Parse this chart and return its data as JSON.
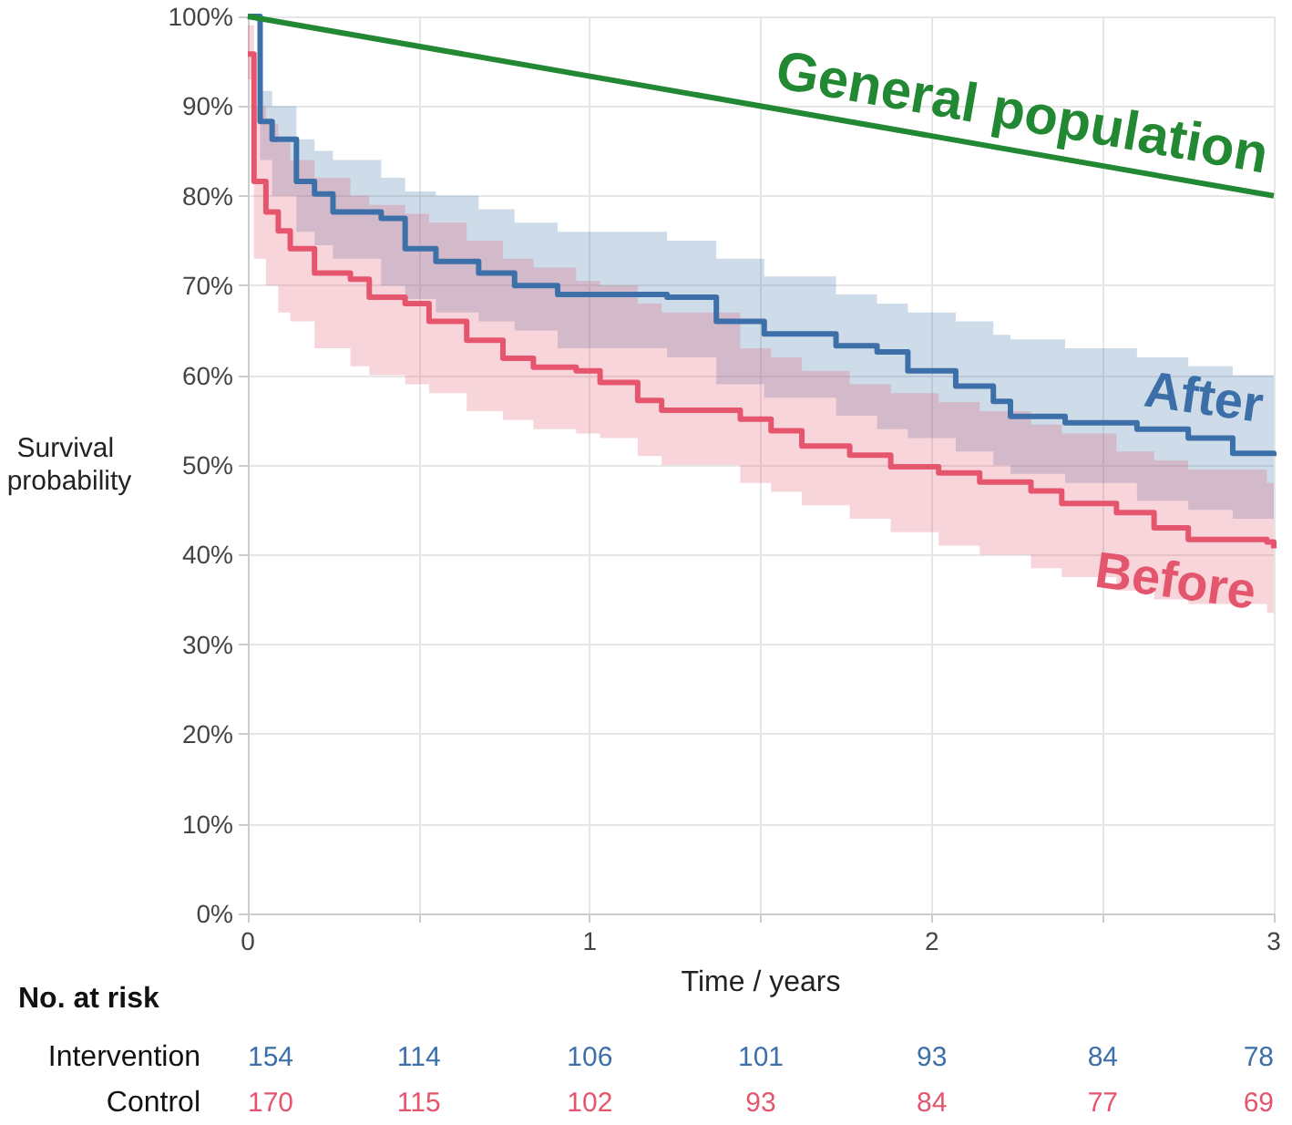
{
  "chart_data": {
    "type": "step",
    "xlabel": "Time / years",
    "ylabel": "Survival probability",
    "xlim": [
      0,
      3
    ],
    "xticks": [
      0,
      {
        "value": 0.5,
        "label": null
      },
      1,
      {
        "value": 1.5,
        "label": null
      },
      2,
      {
        "value": 2.5,
        "label": null
      },
      3
    ],
    "ylim": [
      0,
      100
    ],
    "yticks": [
      {
        "value": 0,
        "label": "0%"
      },
      {
        "value": 10,
        "label": "10%"
      },
      {
        "value": 20,
        "label": "20%"
      },
      {
        "value": 30,
        "label": "30%"
      },
      {
        "value": 40,
        "label": "40%"
      },
      {
        "value": 50,
        "label": "50%"
      },
      {
        "value": 60,
        "label": "60%"
      },
      {
        "value": 70,
        "label": "70%"
      },
      {
        "value": 80,
        "label": "80%"
      },
      {
        "value": 90,
        "label": "90%"
      },
      {
        "value": 100,
        "label": "100%"
      }
    ],
    "grid": true,
    "legend": false,
    "marker": "none",
    "line_style": "solid",
    "series": [
      {
        "name": "After",
        "color": "#3d6fa8",
        "x": [
          0,
          0.036,
          0.071,
          0.142,
          0.195,
          0.249,
          0.39,
          0.46,
          0.55,
          0.675,
          0.78,
          0.906,
          1.226,
          1.37,
          1.51,
          1.72,
          1.84,
          1.93,
          2.07,
          2.18,
          2.23,
          2.39,
          2.6,
          2.75,
          2.88,
          3
        ],
        "values": [
          100,
          88.3,
          86.3,
          81.6,
          80.2,
          78.2,
          77.5,
          74.1,
          72.7,
          71.4,
          70,
          69,
          68.7,
          66,
          64.6,
          63.3,
          62.6,
          60.5,
          58.8,
          57.1,
          55.4,
          54.7,
          54,
          53,
          51.3,
          51
        ],
        "upper": [
          100,
          91.7,
          90,
          86.3,
          85,
          84,
          82,
          80.5,
          80,
          78.5,
          77,
          76,
          75,
          73,
          71,
          69,
          68,
          67,
          66,
          64.5,
          64,
          63,
          62,
          61,
          60,
          58.5
        ],
        "lower": [
          100,
          84,
          80,
          76,
          74.5,
          73,
          70,
          68.5,
          67,
          66,
          65,
          63,
          62,
          59,
          57.5,
          55.5,
          54,
          53,
          51.5,
          50,
          49,
          48,
          46,
          45,
          44,
          43
        ]
      },
      {
        "name": "Before",
        "color": "#e5566e",
        "x": [
          0,
          0.018,
          0.053,
          0.089,
          0.124,
          0.195,
          0.3,
          0.355,
          0.46,
          0.53,
          0.64,
          0.746,
          0.835,
          0.96,
          1.03,
          1.14,
          1.21,
          1.44,
          1.53,
          1.62,
          1.76,
          1.88,
          2.02,
          2.14,
          2.29,
          2.38,
          2.54,
          2.65,
          2.75,
          2.98,
          3
        ],
        "values": [
          95.8,
          81.6,
          78.2,
          76.1,
          74.1,
          71.4,
          70.7,
          68.7,
          68,
          66,
          63.9,
          61.9,
          60.9,
          60.5,
          59.2,
          57.2,
          56.1,
          55.1,
          53.8,
          52.1,
          51.1,
          49.8,
          49.1,
          48.1,
          47.1,
          45.7,
          44.7,
          43,
          41.7,
          41.4,
          40.7
        ],
        "upper": [
          99,
          90,
          88,
          86,
          84,
          82,
          80,
          79,
          78,
          77,
          75,
          73,
          72,
          70.5,
          70,
          68,
          67,
          63,
          62,
          60.5,
          59,
          58,
          57,
          56,
          54.5,
          53.5,
          51.5,
          50.5,
          49.5,
          48,
          47.5
        ],
        "lower": [
          93,
          73,
          70,
          67,
          66,
          63,
          61,
          60,
          59,
          58,
          56,
          55,
          54,
          53.5,
          53,
          51,
          50,
          48,
          47,
          45.5,
          44,
          42.5,
          41,
          40,
          38.5,
          37.5,
          36,
          35,
          34.5,
          33.5,
          33
        ]
      },
      {
        "name": "General population",
        "type": "line",
        "color": "#228833",
        "x": [
          0,
          3
        ],
        "values": [
          100,
          80
        ]
      }
    ],
    "annotations": [
      "No. at risk",
      "Intervention",
      "154",
      "114",
      "106",
      "101",
      "93",
      "84",
      "78",
      "Control",
      "170",
      "115",
      "102",
      "93",
      "84",
      "77",
      "69"
    ]
  }
}
